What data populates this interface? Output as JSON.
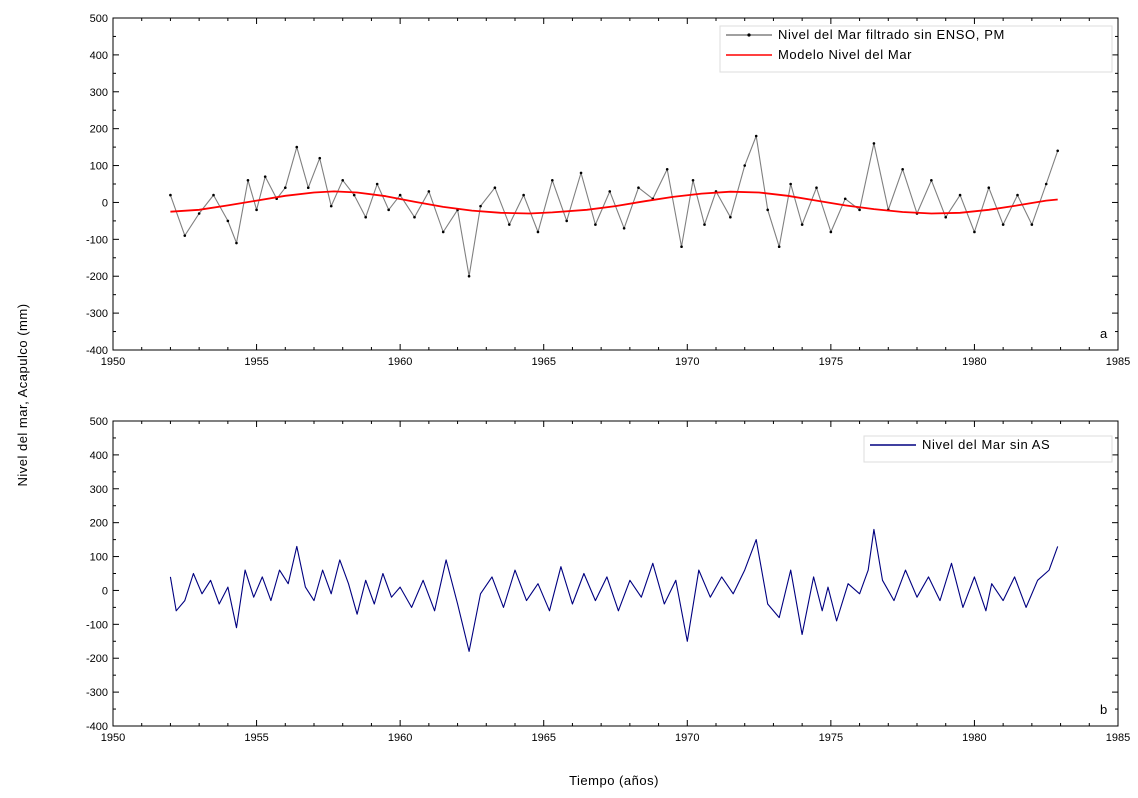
{
  "shared": {
    "ylabel": "Nivel del mar, Acapulco (mm)",
    "xlabel": "Tiempo (años)"
  },
  "chart_data": [
    {
      "type": "line",
      "panel_label": "a",
      "xlim": [
        1950,
        1985
      ],
      "ylim": [
        -400,
        500
      ],
      "x_ticks": [
        1950,
        1955,
        1960,
        1965,
        1970,
        1975,
        1980,
        1985
      ],
      "y_ticks": [
        -400,
        -300,
        -200,
        -100,
        0,
        100,
        200,
        300,
        400,
        500
      ],
      "legend": "top-right",
      "grid": false,
      "series": [
        {
          "name": "Nivel del Mar filtrado sin ENSO, PM",
          "color": "#808080",
          "marker": "dot",
          "x": [
            1952.0,
            1952.5,
            1953.0,
            1953.5,
            1954.0,
            1954.3,
            1954.7,
            1955.0,
            1955.3,
            1955.7,
            1956.0,
            1956.4,
            1956.8,
            1957.2,
            1957.6,
            1958.0,
            1958.4,
            1958.8,
            1959.2,
            1959.6,
            1960.0,
            1960.5,
            1961.0,
            1961.5,
            1962.0,
            1962.4,
            1962.8,
            1963.3,
            1963.8,
            1964.3,
            1964.8,
            1965.3,
            1965.8,
            1966.3,
            1966.8,
            1967.3,
            1967.8,
            1968.3,
            1968.8,
            1969.3,
            1969.8,
            1970.2,
            1970.6,
            1971.0,
            1971.5,
            1972.0,
            1972.4,
            1972.8,
            1973.2,
            1973.6,
            1974.0,
            1974.5,
            1975.0,
            1975.5,
            1976.0,
            1976.5,
            1977.0,
            1977.5,
            1978.0,
            1978.5,
            1979.0,
            1979.5,
            1980.0,
            1980.5,
            1981.0,
            1981.5,
            1982.0,
            1982.5,
            1982.9
          ],
          "y": [
            20,
            -90,
            -30,
            20,
            -50,
            -110,
            60,
            -20,
            70,
            10,
            40,
            150,
            40,
            120,
            -10,
            60,
            20,
            -40,
            50,
            -20,
            20,
            -40,
            30,
            -80,
            -20,
            -200,
            -10,
            40,
            -60,
            20,
            -80,
            60,
            -50,
            80,
            -60,
            30,
            -70,
            40,
            10,
            90,
            -120,
            60,
            -60,
            30,
            -40,
            100,
            180,
            -20,
            -120,
            50,
            -60,
            40,
            -80,
            10,
            -20,
            160,
            -20,
            90,
            -30,
            60,
            -40,
            20,
            -80,
            40,
            -60,
            20,
            -60,
            50,
            140
          ]
        },
        {
          "name": "Modelo Nivel del Mar",
          "color": "#ff0000",
          "marker": "none",
          "x": [
            1952.0,
            1953.0,
            1954.0,
            1955.0,
            1956.0,
            1957.0,
            1957.7,
            1958.5,
            1959.5,
            1960.5,
            1961.5,
            1962.5,
            1963.5,
            1964.5,
            1965.3,
            1966.5,
            1967.5,
            1968.5,
            1969.5,
            1970.5,
            1971.5,
            1972.5,
            1973.5,
            1974.5,
            1975.5,
            1976.5,
            1977.5,
            1978.5,
            1979.5,
            1980.5,
            1981.5,
            1982.5,
            1982.9
          ],
          "y": [
            -25,
            -20,
            -8,
            5,
            18,
            27,
            30,
            27,
            17,
            2,
            -12,
            -22,
            -28,
            -30,
            -27,
            -20,
            -10,
            3,
            15,
            24,
            29,
            27,
            18,
            5,
            -8,
            -18,
            -26,
            -30,
            -28,
            -20,
            -8,
            5,
            8
          ]
        }
      ]
    },
    {
      "type": "line",
      "panel_label": "b",
      "xlim": [
        1950,
        1985
      ],
      "ylim": [
        -400,
        500
      ],
      "x_ticks": [
        1950,
        1955,
        1960,
        1965,
        1970,
        1975,
        1980,
        1985
      ],
      "y_ticks": [
        -400,
        -300,
        -200,
        -100,
        0,
        100,
        200,
        300,
        400,
        500
      ],
      "legend": "top-right",
      "grid": false,
      "series": [
        {
          "name": "Nivel del Mar sin AS",
          "color": "#000080",
          "marker": "none",
          "x": [
            1952.0,
            1952.2,
            1952.5,
            1952.8,
            1953.1,
            1953.4,
            1953.7,
            1954.0,
            1954.3,
            1954.6,
            1954.9,
            1955.2,
            1955.5,
            1955.8,
            1956.1,
            1956.4,
            1956.7,
            1957.0,
            1957.3,
            1957.6,
            1957.9,
            1958.2,
            1958.5,
            1958.8,
            1959.1,
            1959.4,
            1959.7,
            1960.0,
            1960.4,
            1960.8,
            1961.2,
            1961.6,
            1962.0,
            1962.4,
            1962.8,
            1963.2,
            1963.6,
            1964.0,
            1964.4,
            1964.8,
            1965.2,
            1965.6,
            1966.0,
            1966.4,
            1966.8,
            1967.2,
            1967.6,
            1968.0,
            1968.4,
            1968.8,
            1969.2,
            1969.6,
            1970.0,
            1970.4,
            1970.8,
            1971.2,
            1971.6,
            1972.0,
            1972.4,
            1972.8,
            1973.2,
            1973.6,
            1974.0,
            1974.4,
            1974.7,
            1974.9,
            1975.2,
            1975.6,
            1976.0,
            1976.3,
            1976.5,
            1976.8,
            1977.2,
            1977.6,
            1978.0,
            1978.4,
            1978.8,
            1979.2,
            1979.6,
            1980.0,
            1980.4,
            1980.6,
            1981.0,
            1981.4,
            1981.8,
            1982.2,
            1982.6,
            1982.9
          ],
          "y": [
            40,
            -60,
            -30,
            50,
            -10,
            30,
            -40,
            10,
            -110,
            60,
            -20,
            40,
            -30,
            60,
            20,
            130,
            10,
            -30,
            60,
            -10,
            90,
            20,
            -70,
            30,
            -40,
            50,
            -20,
            10,
            -50,
            30,
            -60,
            90,
            -40,
            -180,
            -10,
            40,
            -50,
            60,
            -30,
            20,
            -60,
            70,
            -40,
            50,
            -30,
            40,
            -60,
            30,
            -20,
            80,
            -40,
            30,
            -150,
            60,
            -20,
            40,
            -10,
            60,
            150,
            -40,
            -80,
            60,
            -130,
            40,
            -60,
            10,
            -90,
            20,
            -10,
            60,
            180,
            30,
            -30,
            60,
            -20,
            40,
            -30,
            80,
            -50,
            40,
            -60,
            20,
            -30,
            40,
            -50,
            30,
            60,
            130
          ]
        }
      ]
    }
  ]
}
